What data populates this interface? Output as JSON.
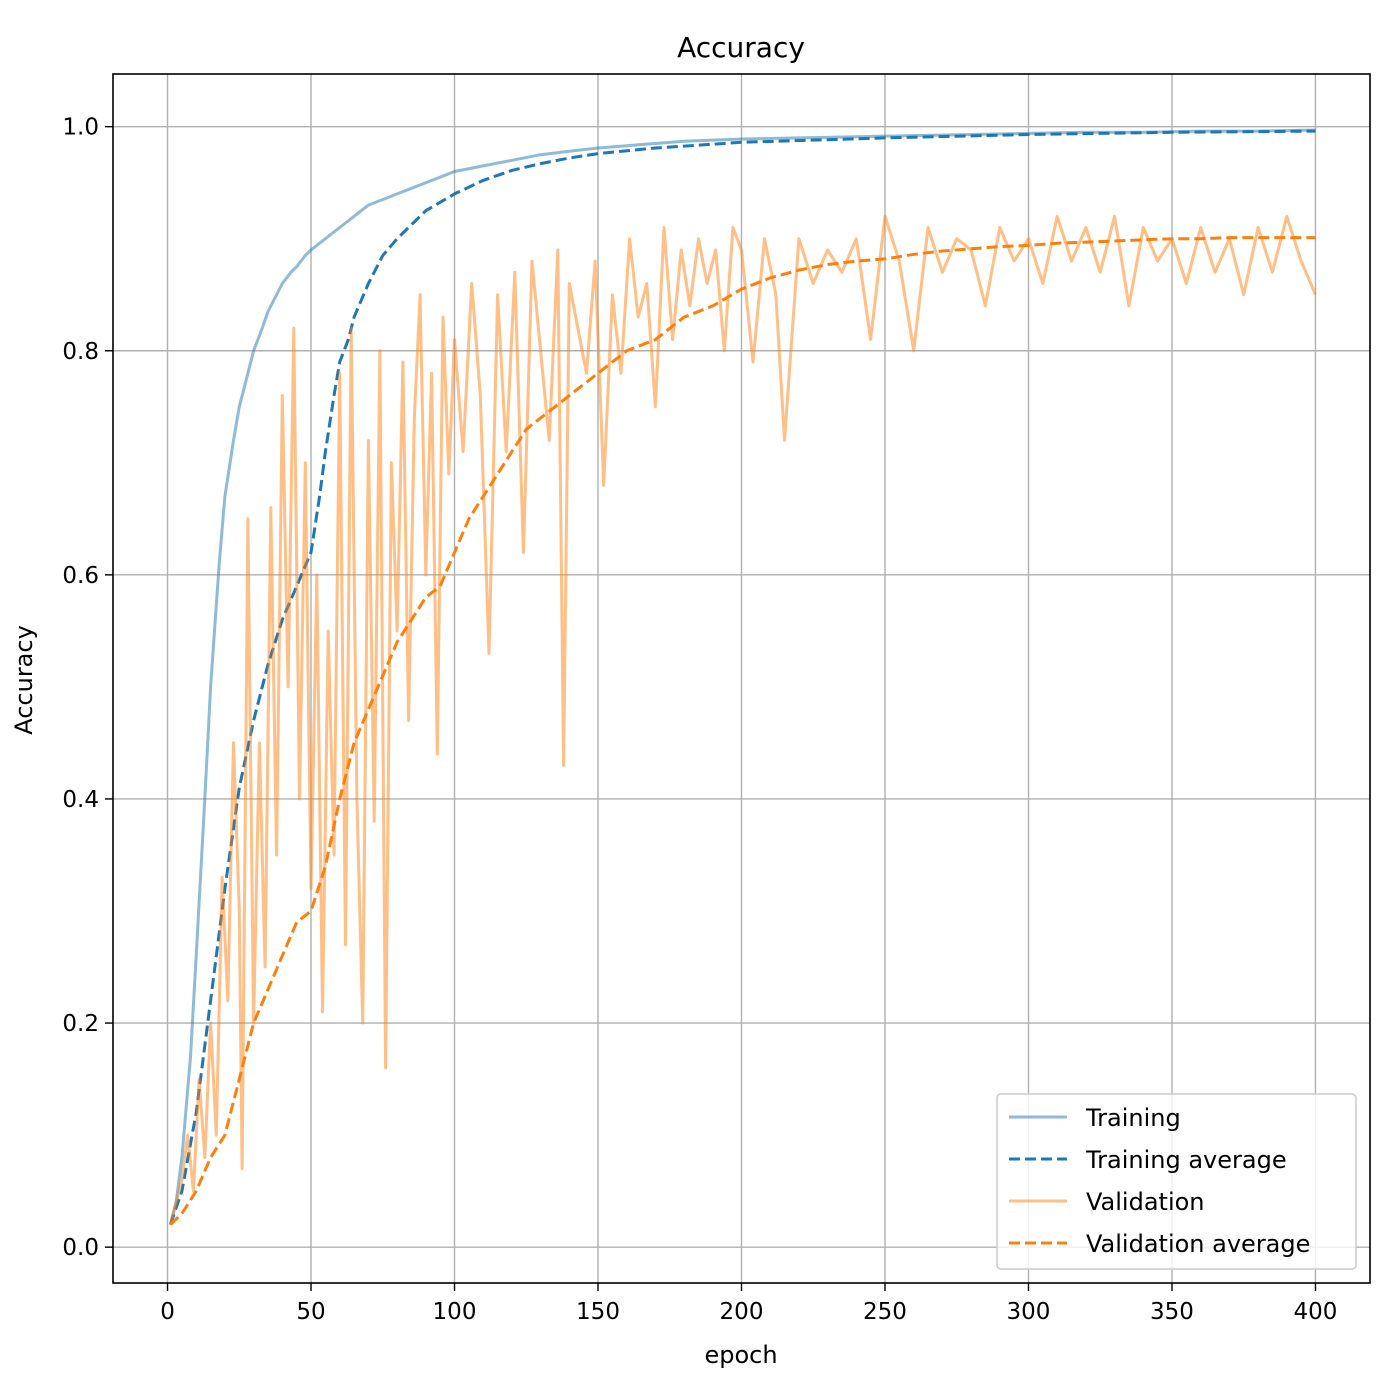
{
  "chart_data": {
    "type": "line",
    "title": "Accuracy",
    "xlabel": "epoch",
    "ylabel": "Accuracy",
    "xlim": [
      -19,
      419
    ],
    "ylim": [
      -0.032,
      1.047
    ],
    "xticks": [
      0,
      50,
      100,
      150,
      200,
      250,
      300,
      350,
      400
    ],
    "yticks": [
      0.0,
      0.2,
      0.4,
      0.6,
      0.8,
      1.0
    ],
    "xtick_labels": [
      "0",
      "50",
      "100",
      "150",
      "200",
      "250",
      "300",
      "350",
      "400"
    ],
    "ytick_labels": [
      "0.0",
      "0.2",
      "0.4",
      "0.6",
      "0.8",
      "1.0"
    ],
    "grid": true,
    "legend_position": "lower-right",
    "series": [
      {
        "name": "Training",
        "color": "#1f77b4",
        "style": "solid",
        "opacity": 0.5,
        "x": [
          1,
          3,
          5,
          8,
          10,
          13,
          15,
          18,
          20,
          23,
          25,
          28,
          30,
          33,
          35,
          38,
          40,
          43,
          45,
          48,
          50,
          55,
          60,
          65,
          70,
          75,
          80,
          85,
          90,
          95,
          100,
          110,
          120,
          130,
          140,
          150,
          160,
          170,
          180,
          190,
          200,
          220,
          240,
          260,
          280,
          300,
          320,
          340,
          360,
          380,
          400
        ],
        "y": [
          0.02,
          0.04,
          0.08,
          0.17,
          0.26,
          0.4,
          0.5,
          0.61,
          0.67,
          0.72,
          0.75,
          0.78,
          0.8,
          0.82,
          0.835,
          0.85,
          0.86,
          0.87,
          0.875,
          0.885,
          0.89,
          0.9,
          0.91,
          0.92,
          0.93,
          0.935,
          0.94,
          0.945,
          0.95,
          0.955,
          0.96,
          0.965,
          0.97,
          0.975,
          0.978,
          0.981,
          0.983,
          0.985,
          0.987,
          0.988,
          0.989,
          0.99,
          0.991,
          0.992,
          0.993,
          0.994,
          0.995,
          0.995,
          0.996,
          0.996,
          0.997
        ]
      },
      {
        "name": "Training average",
        "color": "#1f77b4",
        "style": "dashed",
        "opacity": 1,
        "x": [
          1,
          5,
          10,
          15,
          20,
          25,
          30,
          35,
          40,
          45,
          50,
          53,
          55,
          58,
          60,
          63,
          65,
          70,
          75,
          80,
          90,
          100,
          110,
          120,
          130,
          140,
          150,
          170,
          200,
          250,
          300,
          350,
          400
        ],
        "y": [
          0.02,
          0.05,
          0.12,
          0.22,
          0.32,
          0.41,
          0.47,
          0.52,
          0.56,
          0.59,
          0.62,
          0.67,
          0.71,
          0.76,
          0.79,
          0.81,
          0.83,
          0.86,
          0.885,
          0.9,
          0.925,
          0.94,
          0.952,
          0.961,
          0.967,
          0.972,
          0.976,
          0.981,
          0.986,
          0.99,
          0.993,
          0.995,
          0.996
        ]
      },
      {
        "name": "Validation",
        "color": "#ff7f0e",
        "style": "solid",
        "opacity": 0.5,
        "x": [
          1,
          3,
          5,
          7,
          9,
          11,
          13,
          15,
          17,
          19,
          21,
          23,
          25,
          26,
          28,
          30,
          32,
          34,
          36,
          38,
          40,
          42,
          44,
          46,
          48,
          50,
          52,
          54,
          56,
          58,
          60,
          62,
          64,
          66,
          68,
          70,
          72,
          74,
          76,
          78,
          80,
          82,
          84,
          86,
          88,
          90,
          92,
          94,
          96,
          98,
          100,
          103,
          106,
          109,
          112,
          115,
          118,
          121,
          124,
          127,
          130,
          133,
          136,
          138,
          140,
          143,
          146,
          149,
          152,
          155,
          158,
          161,
          164,
          167,
          170,
          173,
          176,
          179,
          182,
          185,
          188,
          191,
          194,
          197,
          200,
          204,
          208,
          212,
          215,
          220,
          225,
          230,
          235,
          240,
          245,
          250,
          255,
          260,
          265,
          270,
          275,
          280,
          285,
          290,
          295,
          300,
          305,
          310,
          315,
          320,
          325,
          330,
          335,
          340,
          345,
          350,
          355,
          360,
          365,
          370,
          375,
          380,
          385,
          390,
          395,
          400
        ],
        "y": [
          0.02,
          0.04,
          0.06,
          0.1,
          0.05,
          0.15,
          0.08,
          0.2,
          0.1,
          0.33,
          0.22,
          0.45,
          0.3,
          0.07,
          0.65,
          0.2,
          0.45,
          0.25,
          0.66,
          0.35,
          0.76,
          0.5,
          0.82,
          0.4,
          0.7,
          0.32,
          0.6,
          0.21,
          0.55,
          0.35,
          0.78,
          0.27,
          0.82,
          0.4,
          0.2,
          0.72,
          0.38,
          0.8,
          0.16,
          0.7,
          0.55,
          0.79,
          0.47,
          0.74,
          0.85,
          0.6,
          0.78,
          0.44,
          0.83,
          0.69,
          0.81,
          0.71,
          0.86,
          0.76,
          0.53,
          0.85,
          0.71,
          0.87,
          0.62,
          0.88,
          0.8,
          0.72,
          0.89,
          0.43,
          0.86,
          0.82,
          0.78,
          0.88,
          0.68,
          0.85,
          0.78,
          0.9,
          0.83,
          0.86,
          0.75,
          0.91,
          0.81,
          0.89,
          0.84,
          0.9,
          0.86,
          0.89,
          0.8,
          0.91,
          0.89,
          0.79,
          0.9,
          0.85,
          0.72,
          0.9,
          0.86,
          0.89,
          0.87,
          0.9,
          0.81,
          0.92,
          0.88,
          0.8,
          0.91,
          0.87,
          0.9,
          0.89,
          0.84,
          0.91,
          0.88,
          0.9,
          0.86,
          0.92,
          0.88,
          0.91,
          0.87,
          0.92,
          0.84,
          0.91,
          0.88,
          0.9,
          0.86,
          0.91,
          0.87,
          0.9,
          0.85,
          0.91,
          0.87,
          0.92,
          0.88,
          0.85
        ]
      },
      {
        "name": "Validation average",
        "color": "#ff7f0e",
        "style": "dashed",
        "opacity": 1,
        "x": [
          1,
          5,
          10,
          15,
          20,
          25,
          30,
          35,
          40,
          45,
          50,
          55,
          60,
          65,
          70,
          75,
          80,
          85,
          90,
          95,
          100,
          105,
          110,
          115,
          120,
          125,
          130,
          135,
          140,
          145,
          150,
          160,
          170,
          180,
          190,
          200,
          210,
          220,
          230,
          240,
          250,
          260,
          270,
          280,
          290,
          300,
          310,
          320,
          330,
          340,
          350,
          360,
          370,
          380,
          390,
          400
        ],
        "y": [
          0.02,
          0.03,
          0.05,
          0.08,
          0.1,
          0.15,
          0.2,
          0.23,
          0.26,
          0.29,
          0.3,
          0.34,
          0.4,
          0.45,
          0.48,
          0.51,
          0.54,
          0.56,
          0.58,
          0.59,
          0.62,
          0.65,
          0.67,
          0.69,
          0.71,
          0.73,
          0.74,
          0.75,
          0.76,
          0.77,
          0.78,
          0.8,
          0.81,
          0.83,
          0.84,
          0.855,
          0.865,
          0.872,
          0.877,
          0.88,
          0.882,
          0.886,
          0.889,
          0.891,
          0.893,
          0.894,
          0.896,
          0.897,
          0.898,
          0.899,
          0.9,
          0.9,
          0.901,
          0.901,
          0.901,
          0.901
        ]
      }
    ]
  }
}
